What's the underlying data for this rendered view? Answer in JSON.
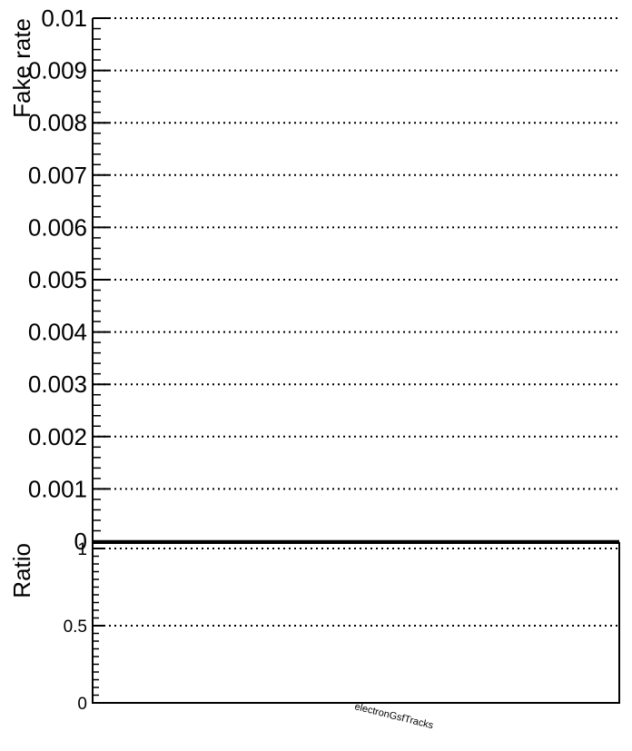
{
  "chart_data": [
    {
      "type": "line",
      "ylabel": "Fake rate",
      "ylim": [
        0,
        0.01
      ],
      "yticks": [
        "0",
        "0.001",
        "0.002",
        "0.003",
        "0.004",
        "0.005",
        "0.006",
        "0.007",
        "0.008",
        "0.009",
        "0.01"
      ],
      "grid": true,
      "series": []
    },
    {
      "type": "line",
      "ylabel": "Ratio",
      "ylim": [
        0,
        1.05
      ],
      "yticks": [
        "0",
        "0.5",
        "1"
      ],
      "xticklabels": [
        "electronGsfTracks"
      ],
      "grid": true,
      "series": []
    }
  ]
}
